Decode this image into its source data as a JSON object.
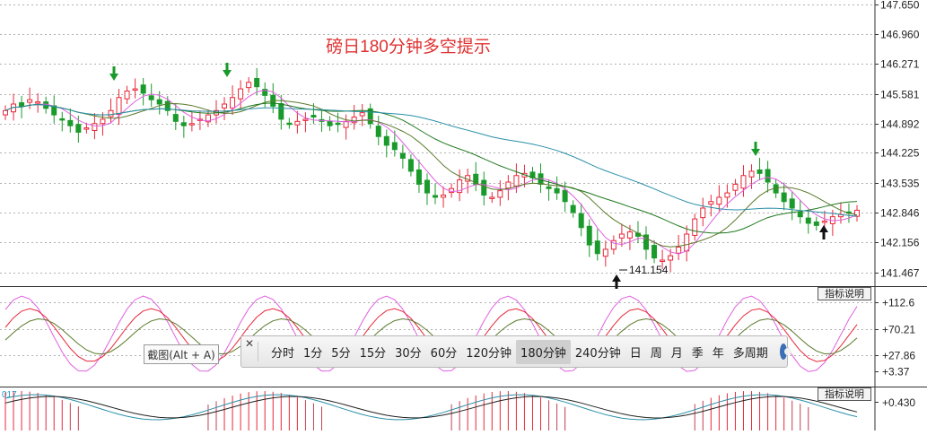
{
  "title": "磅日180分钟多空提示",
  "price_axis": {
    "ticks": [
      "147.650",
      "146.960",
      "146.271",
      "145.581",
      "144.892",
      "144.225",
      "143.535",
      "142.846",
      "142.156",
      "141.467"
    ]
  },
  "low_marker": {
    "label": "141.154"
  },
  "panel2_axis": {
    "ticks": [
      "+112.6",
      "+70.21",
      "+27.86",
      "+3.37"
    ]
  },
  "panel3_axis": {
    "ticks": [
      "+0.430"
    ]
  },
  "panel3_label": "017",
  "indicator_button": "指标说明",
  "screenshot_tooltip": "截图(Alt + A)",
  "close_glyph": "✕",
  "period_bar": {
    "items": [
      "分时",
      "1分",
      "5分",
      "15分",
      "30分",
      "60分",
      "120分钟",
      "180分钟",
      "240分钟",
      "日",
      "周",
      "月",
      "季",
      "年",
      "多周期"
    ],
    "selected": "180分钟"
  },
  "colors": {
    "up": "#e8283a",
    "down": "#1a9a2a",
    "title": "#e03030",
    "ma_pink": "#e060e0",
    "ma_green": "#207a20",
    "ma_teal": "#2a8fa8",
    "ma_olive": "#5a7a2a"
  },
  "chart_data": {
    "type": "candlestick",
    "title": "磅日180分钟多空提示",
    "ylim": [
      141.15,
      147.75
    ],
    "yticks": [
      147.65,
      146.96,
      146.271,
      145.581,
      144.892,
      144.225,
      143.535,
      142.846,
      142.156,
      141.467
    ],
    "annotations": [
      {
        "text": "141.154",
        "value": 141.154
      }
    ],
    "arrows": [
      {
        "direction": "down",
        "near_value": 146.0
      },
      {
        "direction": "down",
        "near_value": 146.0
      },
      {
        "direction": "down",
        "near_value": 144.0
      },
      {
        "direction": "up",
        "near_value": 141.2
      },
      {
        "direction": "up",
        "near_value": 142.2
      }
    ],
    "close": [
      145.2,
      145.35,
      145.3,
      145.45,
      145.4,
      145.25,
      145.1,
      145.0,
      144.85,
      144.7,
      144.8,
      144.9,
      145.0,
      145.2,
      145.5,
      145.65,
      145.7,
      145.6,
      145.45,
      145.35,
      145.2,
      144.95,
      144.85,
      144.9,
      145.0,
      145.1,
      145.2,
      145.35,
      145.5,
      145.7,
      145.85,
      145.75,
      145.55,
      145.3,
      145.0,
      144.9,
      144.95,
      145.0,
      145.05,
      144.95,
      144.85,
      144.9,
      144.95,
      145.05,
      145.15,
      144.9,
      144.6,
      144.4,
      144.3,
      144.1,
      143.8,
      143.5,
      143.3,
      143.2,
      143.25,
      143.4,
      143.6,
      143.7,
      143.5,
      143.25,
      143.2,
      143.35,
      143.55,
      143.7,
      143.75,
      143.65,
      143.5,
      143.4,
      143.3,
      143.1,
      142.85,
      142.5,
      142.1,
      141.9,
      142.0,
      142.2,
      142.35,
      142.4,
      142.3,
      142.0,
      141.8,
      141.75,
      141.85,
      142.05,
      142.35,
      142.7,
      142.95,
      143.1,
      143.2,
      143.3,
      143.5,
      143.7,
      143.8,
      143.75,
      143.55,
      143.3,
      143.1,
      142.95,
      142.75,
      142.6,
      142.55,
      142.65,
      142.75,
      142.8,
      142.85,
      142.9
    ],
    "oscillator": {
      "yticks": [
        112.6,
        70.21,
        27.86,
        3.37
      ],
      "ylim": [
        -20,
        135
      ]
    },
    "macd": {
      "yticks": [
        0.43
      ]
    }
  }
}
